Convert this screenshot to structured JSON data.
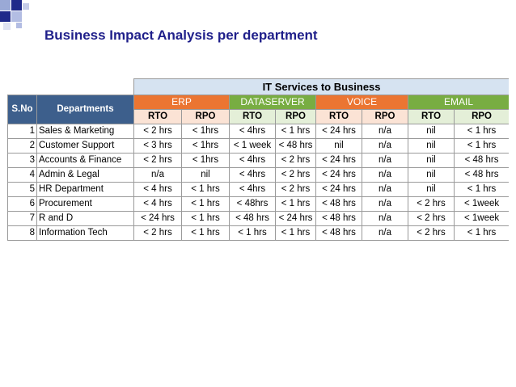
{
  "slide": {
    "title": "Business Impact Analysis per department"
  },
  "table": {
    "super_header": "IT Services to Business",
    "col_sno": "S.No",
    "col_dept": "Departments",
    "groups": [
      "ERP",
      "DATASERVER",
      "VOICE",
      "EMAIL"
    ],
    "sub_rto": "RTO",
    "sub_rpo": "RPO",
    "rows": [
      {
        "sno": "1",
        "dept": "Sales & Marketing",
        "v": [
          "< 2 hrs",
          "< 1hrs",
          "< 4hrs",
          "< 1 hrs",
          "< 24 hrs",
          "n/a",
          "nil",
          "< 1 hrs"
        ]
      },
      {
        "sno": "2",
        "dept": "Customer Support",
        "v": [
          "< 3 hrs",
          "< 1hrs",
          "< 1 week",
          "< 48 hrs",
          "nil",
          "n/a",
          "nil",
          "< 1 hrs"
        ]
      },
      {
        "sno": "3",
        "dept": "Accounts & Finance",
        "v": [
          "< 2 hrs",
          "< 1hrs",
          "< 4hrs",
          "< 2 hrs",
          "< 24 hrs",
          "n/a",
          "nil",
          "< 48 hrs"
        ]
      },
      {
        "sno": "4",
        "dept": "Admin & Legal",
        "v": [
          "n/a",
          "nil",
          "< 4hrs",
          "< 2 hrs",
          "< 24 hrs",
          "n/a",
          "nil",
          "< 48 hrs"
        ]
      },
      {
        "sno": "5",
        "dept": "HR Department",
        "v": [
          "< 4 hrs",
          "< 1 hrs",
          "< 4hrs",
          "< 2 hrs",
          "< 24 hrs",
          "n/a",
          "nil",
          "< 1 hrs"
        ]
      },
      {
        "sno": "6",
        "dept": "Procurement",
        "v": [
          "< 4 hrs",
          "< 1 hrs",
          "<  48hrs",
          "< 1 hrs",
          "< 48 hrs",
          "n/a",
          "< 2 hrs",
          "< 1week"
        ]
      },
      {
        "sno": "7",
        "dept": "R and D",
        "v": [
          "< 24 hrs",
          "< 1 hrs",
          "< 48 hrs",
          "< 24 hrs",
          "< 48 hrs",
          "n/a",
          "< 2 hrs",
          "< 1week"
        ]
      },
      {
        "sno": "8",
        "dept": "Information Tech",
        "v": [
          "< 2 hrs",
          "< 1 hrs",
          "< 1 hrs",
          "< 1 hrs",
          "< 48 hrs",
          "n/a",
          "< 2 hrs",
          "< 1 hrs"
        ]
      }
    ]
  },
  "colors": {
    "title": "#1f1f8a",
    "header_dark": "#3d5f8c",
    "orange": "#eb7532",
    "green": "#78ad42",
    "orange_light": "#fbe3d5",
    "green_light": "#e4efd8",
    "it_header": "#d6e3f1"
  }
}
